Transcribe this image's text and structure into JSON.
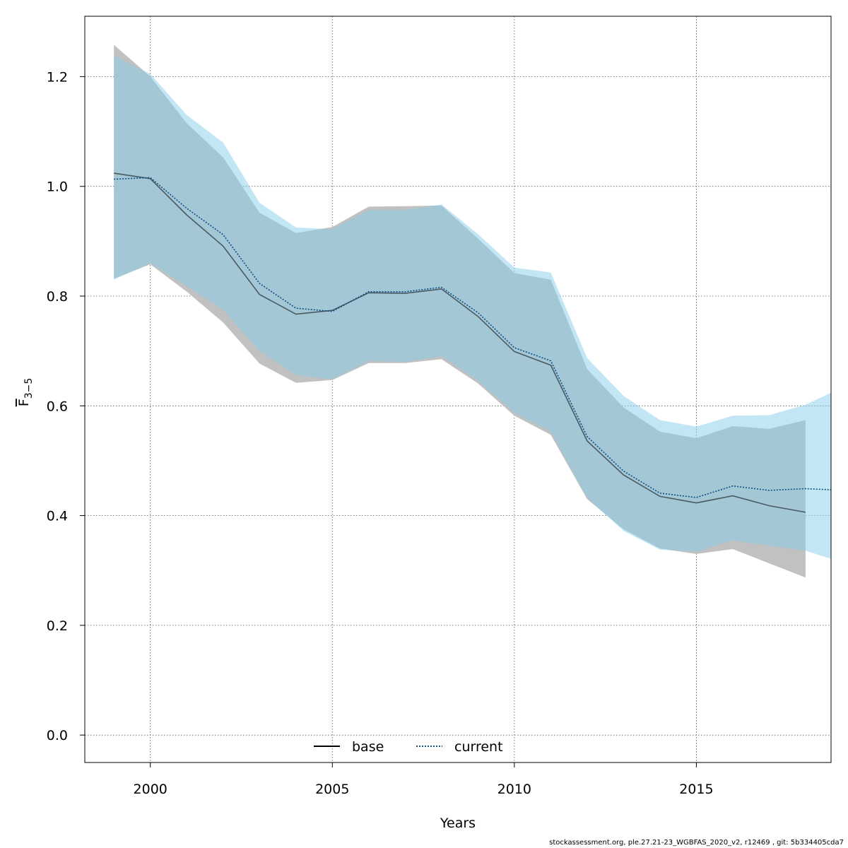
{
  "chart_data": {
    "type": "line",
    "xlabel": "Years",
    "ylabel": "F",
    "ylabel_sub": "3−5",
    "xlim": [
      1998.2,
      2018.7
    ],
    "ylim": [
      -0.05,
      1.31
    ],
    "x_ticks": [
      2000,
      2005,
      2010,
      2015
    ],
    "y_ticks": [
      0.0,
      0.2,
      0.4,
      0.6,
      0.8,
      1.0,
      1.2
    ],
    "y_tick_labels": [
      "0.0",
      "0.2",
      "0.4",
      "0.6",
      "0.8",
      "1.0",
      "1.2"
    ],
    "grid": true,
    "legend_position": "bottom",
    "series": [
      {
        "name": "base",
        "color": "#000000",
        "band_color": "#bebebe",
        "line_style": "solid",
        "x": [
          1999,
          2000,
          2001,
          2002,
          2003,
          2004,
          2005,
          2006,
          2007,
          2008,
          2009,
          2010,
          2011,
          2012,
          2013,
          2014,
          2015,
          2016,
          2017,
          2018
        ],
        "y": [
          1.024,
          1.014,
          0.948,
          0.891,
          0.803,
          0.767,
          0.774,
          0.806,
          0.805,
          0.813,
          0.763,
          0.699,
          0.674,
          0.536,
          0.474,
          0.435,
          0.423,
          0.436,
          0.418,
          0.406
        ],
        "upper": [
          1.258,
          1.2,
          1.115,
          1.053,
          0.952,
          0.915,
          0.926,
          0.963,
          0.964,
          0.965,
          0.905,
          0.842,
          0.83,
          0.667,
          0.597,
          0.553,
          0.541,
          0.563,
          0.558,
          0.574
        ],
        "lower": [
          0.832,
          0.858,
          0.808,
          0.752,
          0.677,
          0.642,
          0.647,
          0.678,
          0.678,
          0.685,
          0.641,
          0.582,
          0.547,
          0.43,
          0.375,
          0.34,
          0.33,
          0.339,
          0.313,
          0.287
        ]
      },
      {
        "name": "current",
        "color": "#0a4f86",
        "band_color": "#87ceeb",
        "line_style": "dotted",
        "x": [
          1999,
          2000,
          2001,
          2002,
          2003,
          2004,
          2005,
          2006,
          2007,
          2008,
          2009,
          2010,
          2011,
          2012,
          2013,
          2014,
          2015,
          2016,
          2017,
          2018,
          2018.7
        ],
        "y": [
          1.013,
          1.016,
          0.96,
          0.912,
          0.823,
          0.778,
          0.772,
          0.808,
          0.808,
          0.816,
          0.77,
          0.706,
          0.682,
          0.544,
          0.481,
          0.441,
          0.433,
          0.454,
          0.446,
          0.449,
          0.447
        ],
        "upper": [
          1.238,
          1.205,
          1.13,
          1.08,
          0.97,
          0.925,
          0.922,
          0.957,
          0.957,
          0.967,
          0.913,
          0.852,
          0.843,
          0.687,
          0.618,
          0.574,
          0.562,
          0.582,
          0.583,
          0.602,
          0.624
        ],
        "lower": [
          0.83,
          0.86,
          0.818,
          0.775,
          0.7,
          0.656,
          0.648,
          0.682,
          0.68,
          0.69,
          0.646,
          0.587,
          0.553,
          0.432,
          0.372,
          0.338,
          0.334,
          0.355,
          0.345,
          0.336,
          0.321
        ]
      }
    ]
  },
  "footer": "stockassessment.org, ple.27.21-23_WGBFAS_2020_v2, r12469 , git: 5b334405cda7"
}
